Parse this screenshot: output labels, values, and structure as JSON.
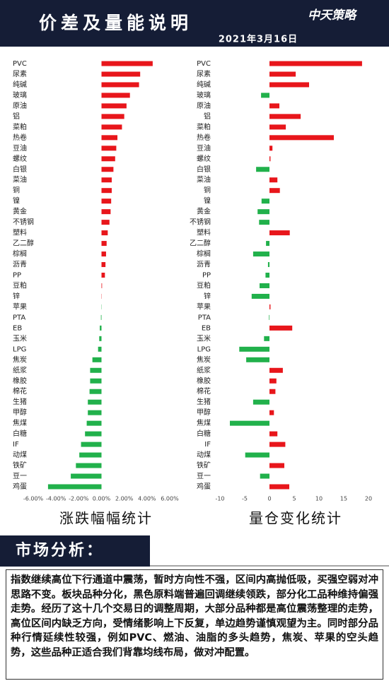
{
  "header": {
    "title": "价差及量能说明",
    "logo": "中天策略",
    "date": "2021年3月16日"
  },
  "chart_data": [
    {
      "type": "bar",
      "orientation": "horizontal",
      "title": "涨跌幅幅统计",
      "color_positive": "#e8161b",
      "color_negative": "#21b14b",
      "categories": [
        "PVC",
        "尿素",
        "纯碱",
        "玻璃",
        "原油",
        "铝",
        "菜粕",
        "热卷",
        "豆油",
        "螺纹",
        "白银",
        "菜油",
        "铜",
        "镍",
        "黄金",
        "不锈钢",
        "塑料",
        "乙二醇",
        "棕榈",
        "沥青",
        "PP",
        "豆粕",
        "锌",
        "苹果",
        "PTA",
        "EB",
        "玉米",
        "LPG",
        "焦炭",
        "纸浆",
        "橡胶",
        "棉花",
        "生猪",
        "甲醇",
        "焦煤",
        "白糖",
        "IF",
        "动煤",
        "铁矿",
        "豆一",
        "鸡蛋"
      ],
      "values": [
        4.5,
        3.4,
        3.3,
        2.5,
        2.2,
        2.0,
        1.8,
        1.4,
        1.3,
        1.2,
        1.05,
        0.9,
        0.9,
        0.85,
        0.8,
        0.7,
        0.55,
        0.45,
        0.4,
        0.35,
        0.3,
        0.05,
        0.02,
        -0.02,
        -0.05,
        -0.15,
        -0.2,
        -0.3,
        -0.8,
        -1.0,
        -1.0,
        -1.05,
        -1.2,
        -1.2,
        -1.3,
        -1.45,
        -1.8,
        -1.95,
        -2.25,
        -2.7,
        -4.7
      ],
      "xlim": [
        -6,
        6
      ],
      "xticks": [
        {
          "value": -6,
          "label": "-6.00%"
        },
        {
          "value": -4,
          "label": "-4.00%"
        },
        {
          "value": -2,
          "label": "-2.00%"
        },
        {
          "value": 0,
          "label": "0.00%"
        },
        {
          "value": 2,
          "label": "2.00%"
        },
        {
          "value": 4,
          "label": "4.00%"
        },
        {
          "value": 6,
          "label": "6.00%"
        }
      ]
    },
    {
      "type": "bar",
      "orientation": "horizontal",
      "title": "量仓变化统计",
      "color_positive": "#e8161b",
      "color_negative": "#21b14b",
      "categories": [
        "PVC",
        "尿素",
        "纯碱",
        "玻璃",
        "原油",
        "铝",
        "菜粕",
        "热卷",
        "豆油",
        "螺纹",
        "白银",
        "菜油",
        "铜",
        "镍",
        "黄金",
        "不锈钢",
        "塑料",
        "乙二醇",
        "棕榈",
        "沥青",
        "PP",
        "豆粕",
        "锌",
        "苹果",
        "PTA",
        "EB",
        "玉米",
        "LPG",
        "焦炭",
        "纸浆",
        "橡胶",
        "棉花",
        "生猪",
        "甲醇",
        "焦煤",
        "白糖",
        "IF",
        "动煤",
        "铁矿",
        "豆一",
        "鸡蛋"
      ],
      "values": [
        18.7,
        5.3,
        8.0,
        -1.7,
        2.0,
        6.3,
        3.3,
        13.0,
        0.6,
        0.2,
        -2.7,
        1.6,
        2.1,
        -1.6,
        -2.4,
        -2.1,
        4.1,
        -0.7,
        -3.3,
        -0.3,
        -0.8,
        -2.0,
        -3.6,
        0.2,
        -0.1,
        4.6,
        -1.1,
        -6.1,
        -4.7,
        2.7,
        1.4,
        1.2,
        -3.3,
        0.9,
        -8.0,
        1.6,
        3.2,
        -4.9,
        3.0,
        -1.9,
        4.0
      ],
      "xlim": [
        -10,
        20
      ],
      "xticks": [
        -10,
        -5,
        0,
        5,
        10,
        15,
        20
      ]
    }
  ],
  "analysis": {
    "heading": "市场分析：",
    "text": "指数继续高位下行通道中震荡，暂时方向性不强，区间内高抛低吸，买强空弱对冲思路不变。板块品种分化，黑色原料端普遍回调继续领跌，部分化工品种维持偏强走势。经历了这十几个交易日的调整周期，大部分品种都是高位震荡整理的走势，高位区间内缺乏方向，受情绪影响上下反复，单边趋势谨慎观望为主。同时部分品种行情延续性较强，例如PVC、燃油、油脂的多头趋势，焦炭、苹果的空头趋势，这些品种正适合我们背靠均线布局，做对冲配置。"
  }
}
